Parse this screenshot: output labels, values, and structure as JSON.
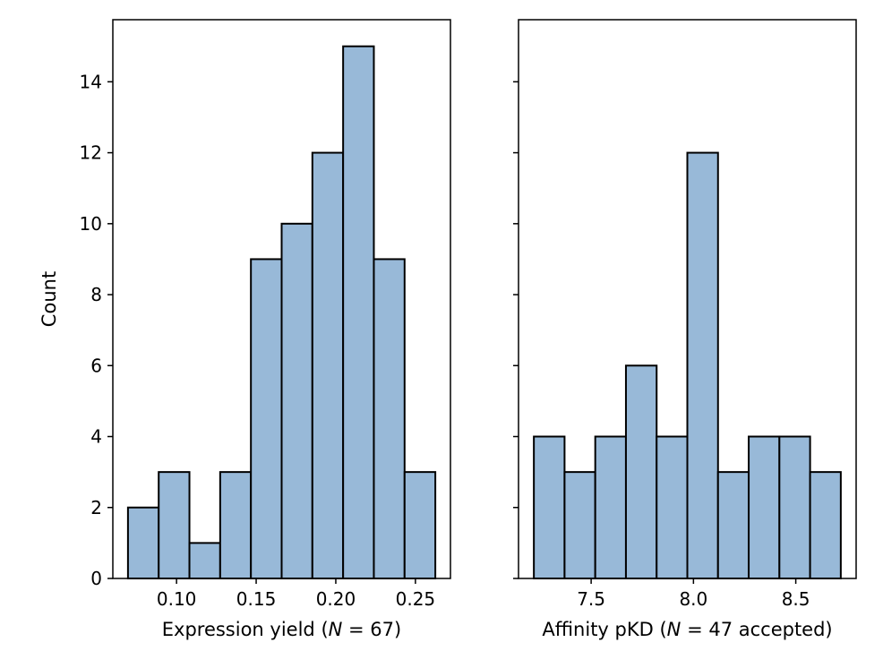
{
  "colors": {
    "bar_fill": "#98b9d8",
    "bar_edge": "#000000",
    "axes": "#000000",
    "background": "#ffffff"
  },
  "chart_data": [
    {
      "type": "bar",
      "subtype": "histogram",
      "title": "",
      "xlabel": "Expression yield (N = 67)",
      "ylabel": "Count",
      "bin_edges": [
        0.0695,
        0.0888,
        0.1081,
        0.1274,
        0.1467,
        0.166,
        0.1853,
        0.2046,
        0.2239,
        0.2432,
        0.2625
      ],
      "values": [
        2,
        3,
        1,
        3,
        9,
        10,
        12,
        15,
        9,
        3
      ],
      "xlim": [
        0.06,
        0.272
      ],
      "ylim": [
        0,
        15.75
      ],
      "xticks": [
        0.1,
        0.15,
        0.2,
        0.25
      ],
      "xtick_labels": [
        "0.10",
        "0.15",
        "0.20",
        "0.25"
      ],
      "yticks": [
        0,
        2,
        4,
        6,
        8,
        10,
        12,
        14
      ],
      "ytick_labels": [
        "0",
        "2",
        "4",
        "6",
        "8",
        "10",
        "12",
        "14"
      ]
    },
    {
      "type": "bar",
      "subtype": "histogram",
      "title": "",
      "xlabel": "Affinity pKD (N = 47 accepted)",
      "ylabel": "",
      "bin_edges": [
        7.22,
        7.37,
        7.52,
        7.67,
        7.82,
        7.97,
        8.12,
        8.27,
        8.42,
        8.57,
        8.72
      ],
      "values": [
        4,
        3,
        4,
        6,
        4,
        12,
        3,
        4,
        4,
        3
      ],
      "xlim": [
        7.145,
        8.795
      ],
      "ylim": [
        0,
        15.75
      ],
      "xticks": [
        7.5,
        8.0,
        8.5
      ],
      "xtick_labels": [
        "7.5",
        "8.0",
        "8.5"
      ],
      "yticks": [
        0,
        2,
        4,
        6,
        8,
        10,
        12,
        14
      ],
      "ytick_labels": []
    }
  ]
}
